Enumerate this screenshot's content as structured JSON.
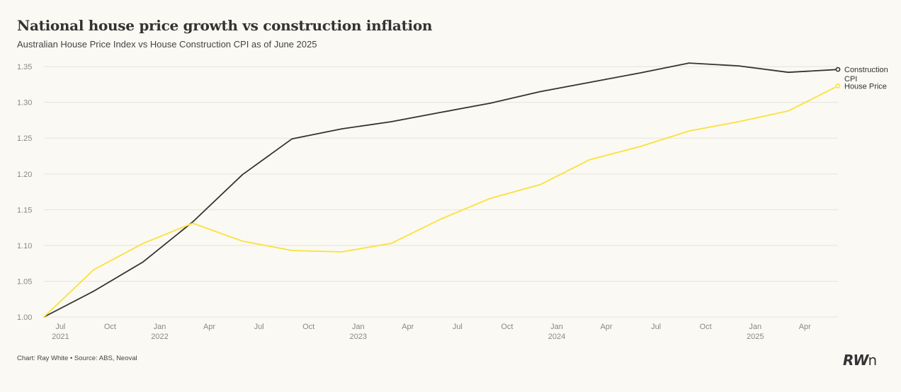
{
  "header": {
    "title": "National house price growth vs construction inflation",
    "subtitle": "Australian House Price Index vs House Construction CPI as of June 2025"
  },
  "footer": {
    "source": "Chart: Ray White • Source: ABS, Neoval",
    "logo_rw": "RW",
    "logo_n": "n"
  },
  "colors": {
    "background": "#faf9f3",
    "construction_cpi": "#333333",
    "house_price": "#fbe13a",
    "grid": "#e6e4dc",
    "axis_text": "#888888"
  },
  "chart_data": {
    "type": "line",
    "title": "National house price growth vs construction inflation",
    "subtitle": "Australian House Price Index vs House Construction CPI as of June 2025",
    "xlabel": "",
    "ylabel": "",
    "ylim": [
      1.0,
      1.36
    ],
    "yticks": [
      "1.00",
      "1.05",
      "1.10",
      "1.15",
      "1.20",
      "1.25",
      "1.30",
      "1.35"
    ],
    "xlim": [
      "2021-06",
      "2025-06"
    ],
    "xticks": [
      {
        "date": "2021-07",
        "month": "Jul",
        "year": "2021"
      },
      {
        "date": "2021-10",
        "month": "Oct",
        "year": ""
      },
      {
        "date": "2022-01",
        "month": "Jan",
        "year": "2022"
      },
      {
        "date": "2022-04",
        "month": "Apr",
        "year": ""
      },
      {
        "date": "2022-07",
        "month": "Jul",
        "year": ""
      },
      {
        "date": "2022-10",
        "month": "Oct",
        "year": ""
      },
      {
        "date": "2023-01",
        "month": "Jan",
        "year": "2023"
      },
      {
        "date": "2023-04",
        "month": "Apr",
        "year": ""
      },
      {
        "date": "2023-07",
        "month": "Jul",
        "year": ""
      },
      {
        "date": "2023-10",
        "month": "Oct",
        "year": ""
      },
      {
        "date": "2024-01",
        "month": "Jan",
        "year": "2024"
      },
      {
        "date": "2024-04",
        "month": "Apr",
        "year": ""
      },
      {
        "date": "2024-07",
        "month": "Jul",
        "year": ""
      },
      {
        "date": "2024-10",
        "month": "Oct",
        "year": ""
      },
      {
        "date": "2025-01",
        "month": "Jan",
        "year": "2025"
      },
      {
        "date": "2025-04",
        "month": "Apr",
        "year": ""
      }
    ],
    "grid": true,
    "series": [
      {
        "name": "Construction CPI",
        "label_lines": [
          "Construction",
          "CPI"
        ],
        "color": "#333333",
        "points": [
          {
            "x": "2021-06",
            "y": 1.0
          },
          {
            "x": "2021-09",
            "y": 1.036
          },
          {
            "x": "2021-12",
            "y": 1.077
          },
          {
            "x": "2022-03",
            "y": 1.133
          },
          {
            "x": "2022-06",
            "y": 1.199
          },
          {
            "x": "2022-09",
            "y": 1.249
          },
          {
            "x": "2022-12",
            "y": 1.263
          },
          {
            "x": "2023-03",
            "y": 1.273
          },
          {
            "x": "2023-06",
            "y": 1.286
          },
          {
            "x": "2023-09",
            "y": 1.299
          },
          {
            "x": "2023-12",
            "y": 1.315
          },
          {
            "x": "2024-03",
            "y": 1.328
          },
          {
            "x": "2024-06",
            "y": 1.341
          },
          {
            "x": "2024-09",
            "y": 1.355
          },
          {
            "x": "2024-12",
            "y": 1.351
          },
          {
            "x": "2025-03",
            "y": 1.342
          },
          {
            "x": "2025-06",
            "y": 1.346
          }
        ]
      },
      {
        "name": "House Price",
        "label_lines": [
          "House Price"
        ],
        "color": "#fbe13a",
        "points": [
          {
            "x": "2021-06",
            "y": 1.0
          },
          {
            "x": "2021-09",
            "y": 1.066
          },
          {
            "x": "2021-12",
            "y": 1.103
          },
          {
            "x": "2022-03",
            "y": 1.131
          },
          {
            "x": "2022-06",
            "y": 1.106
          },
          {
            "x": "2022-09",
            "y": 1.093
          },
          {
            "x": "2022-12",
            "y": 1.091
          },
          {
            "x": "2023-03",
            "y": 1.103
          },
          {
            "x": "2023-06",
            "y": 1.137
          },
          {
            "x": "2023-09",
            "y": 1.166
          },
          {
            "x": "2023-12",
            "y": 1.185
          },
          {
            "x": "2024-03",
            "y": 1.22
          },
          {
            "x": "2024-06",
            "y": 1.238
          },
          {
            "x": "2024-09",
            "y": 1.26
          },
          {
            "x": "2024-12",
            "y": 1.273
          },
          {
            "x": "2025-03",
            "y": 1.288
          },
          {
            "x": "2025-06",
            "y": 1.323
          }
        ]
      }
    ]
  }
}
